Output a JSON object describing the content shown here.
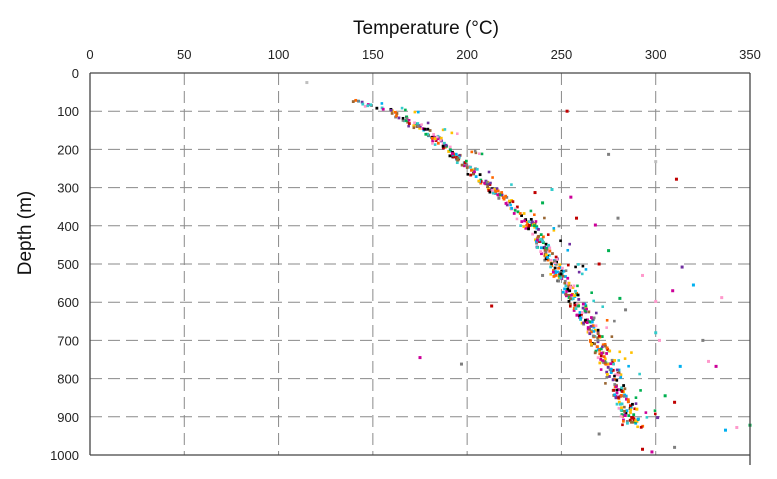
{
  "chart_data": {
    "type": "scatter",
    "title": "",
    "xlabel": "Temperature (°C)",
    "ylabel": "Depth (m)",
    "x_axis_position": "top",
    "y_axis_inverted": true,
    "xlim": [
      0,
      350
    ],
    "ylim": [
      0,
      1000
    ],
    "x_ticks": [
      0,
      50,
      100,
      150,
      200,
      250,
      300,
      350
    ],
    "y_ticks": [
      0,
      100,
      200,
      300,
      400,
      500,
      600,
      700,
      800,
      900,
      1000
    ],
    "x_tick_labels": [
      "0",
      "50",
      "100",
      "150",
      "200",
      "250",
      "300",
      "350"
    ],
    "y_tick_labels": [
      "0",
      "100",
      "200",
      "300",
      "400",
      "500",
      "600",
      "700",
      "800",
      "900",
      "1000"
    ],
    "vertical_grid": true,
    "horizontal_grid": true,
    "grid_style": "dashed",
    "colors": [
      "#ff6600",
      "#00b0f0",
      "#7f7f7f",
      "#000000",
      "#cc0099",
      "#00b050",
      "#7030a0",
      "#ff99cc",
      "#c00000",
      "#ffc000",
      "#33cccc",
      "#996633"
    ],
    "main_trend": {
      "description_in_data_units": "temperature vs depth along the main cluster",
      "points": [
        {
          "depth": 70,
          "temperature": 140
        },
        {
          "depth": 100,
          "temperature": 158
        },
        {
          "depth": 150,
          "temperature": 178
        },
        {
          "depth": 200,
          "temperature": 190
        },
        {
          "depth": 250,
          "temperature": 202
        },
        {
          "depth": 300,
          "temperature": 212
        },
        {
          "depth": 350,
          "temperature": 225
        },
        {
          "depth": 400,
          "temperature": 234
        },
        {
          "depth": 450,
          "temperature": 240
        },
        {
          "depth": 500,
          "temperature": 246
        },
        {
          "depth": 550,
          "temperature": 252
        },
        {
          "depth": 600,
          "temperature": 258
        },
        {
          "depth": 650,
          "temperature": 264
        },
        {
          "depth": 700,
          "temperature": 269
        },
        {
          "depth": 750,
          "temperature": 274
        },
        {
          "depth": 800,
          "temperature": 278
        },
        {
          "depth": 850,
          "temperature": 282
        },
        {
          "depth": 900,
          "temperature": 286
        },
        {
          "depth": 930,
          "temperature": 290
        }
      ]
    },
    "outliers": [
      {
        "temperature": 115,
        "depth": 25,
        "color": "#bfbfbf"
      },
      {
        "temperature": 253,
        "depth": 100,
        "color": "#c00000"
      },
      {
        "temperature": 275,
        "depth": 213,
        "color": "#7f7f7f"
      },
      {
        "temperature": 300,
        "depth": 232,
        "color": "#bfbfbf"
      },
      {
        "temperature": 311,
        "depth": 278,
        "color": "#c00000"
      },
      {
        "temperature": 245,
        "depth": 305,
        "color": "#33cccc"
      },
      {
        "temperature": 236,
        "depth": 313,
        "color": "#c00000"
      },
      {
        "temperature": 255,
        "depth": 325,
        "color": "#cc0099"
      },
      {
        "temperature": 240,
        "depth": 340,
        "color": "#00b050"
      },
      {
        "temperature": 280,
        "depth": 380,
        "color": "#7f7f7f"
      },
      {
        "temperature": 258,
        "depth": 380,
        "color": "#c00000"
      },
      {
        "temperature": 268,
        "depth": 398,
        "color": "#cc0099"
      },
      {
        "temperature": 275,
        "depth": 465,
        "color": "#00b050"
      },
      {
        "temperature": 270,
        "depth": 500,
        "color": "#c00000"
      },
      {
        "temperature": 314,
        "depth": 508,
        "color": "#7030a0"
      },
      {
        "temperature": 293,
        "depth": 530,
        "color": "#ff99cc"
      },
      {
        "temperature": 240,
        "depth": 530,
        "color": "#7f7f7f"
      },
      {
        "temperature": 320,
        "depth": 555,
        "color": "#00b0f0"
      },
      {
        "temperature": 309,
        "depth": 570,
        "color": "#cc0099"
      },
      {
        "temperature": 335,
        "depth": 588,
        "color": "#ff99cc"
      },
      {
        "temperature": 281,
        "depth": 590,
        "color": "#00b050"
      },
      {
        "temperature": 300,
        "depth": 598,
        "color": "#ff99cc"
      },
      {
        "temperature": 213,
        "depth": 610,
        "color": "#c00000"
      },
      {
        "temperature": 284,
        "depth": 620,
        "color": "#7f7f7f"
      },
      {
        "temperature": 300,
        "depth": 680,
        "color": "#33cccc"
      },
      {
        "temperature": 302,
        "depth": 700,
        "color": "#ff99cc"
      },
      {
        "temperature": 325,
        "depth": 700,
        "color": "#7f7f7f"
      },
      {
        "temperature": 175,
        "depth": 745,
        "color": "#cc0099"
      },
      {
        "temperature": 197,
        "depth": 762,
        "color": "#7f7f7f"
      },
      {
        "temperature": 313,
        "depth": 768,
        "color": "#00b0f0"
      },
      {
        "temperature": 332,
        "depth": 768,
        "color": "#cc0099"
      },
      {
        "temperature": 328,
        "depth": 755,
        "color": "#ff99cc"
      },
      {
        "temperature": 305,
        "depth": 845,
        "color": "#00b050"
      },
      {
        "temperature": 310,
        "depth": 862,
        "color": "#c00000"
      },
      {
        "temperature": 290,
        "depth": 880,
        "color": "#ffc000"
      },
      {
        "temperature": 301,
        "depth": 902,
        "color": "#7030a0"
      },
      {
        "temperature": 337,
        "depth": 935,
        "color": "#00b0f0"
      },
      {
        "temperature": 350,
        "depth": 922,
        "color": "#00b050"
      },
      {
        "temperature": 343,
        "depth": 928,
        "color": "#ff99cc"
      },
      {
        "temperature": 270,
        "depth": 945,
        "color": "#7f7f7f"
      },
      {
        "temperature": 293,
        "depth": 985,
        "color": "#c00000"
      },
      {
        "temperature": 310,
        "depth": 980,
        "color": "#7f7f7f"
      },
      {
        "temperature": 298,
        "depth": 992,
        "color": "#cc0099"
      }
    ]
  }
}
